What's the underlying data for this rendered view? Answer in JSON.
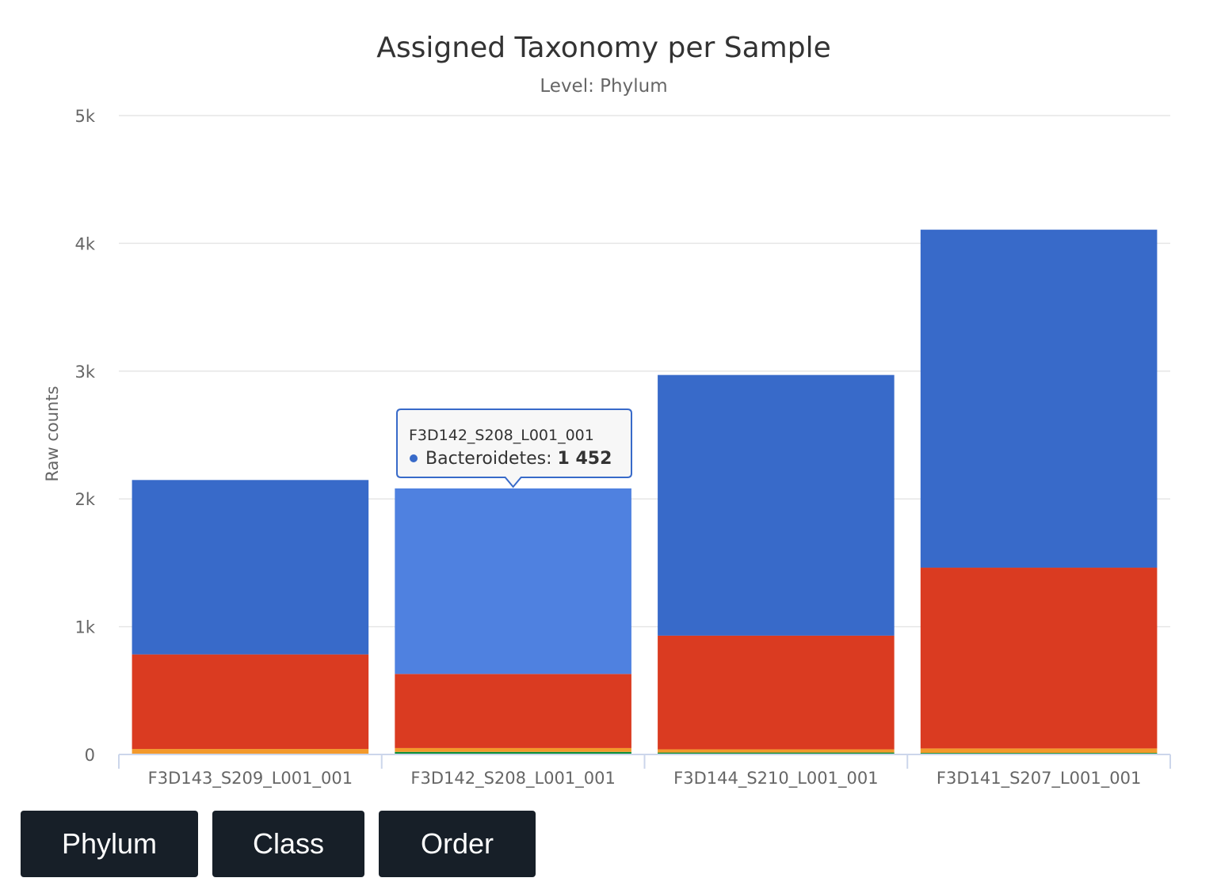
{
  "chart_data": {
    "type": "bar",
    "stacked": true,
    "title": "Assigned Taxonomy per Sample",
    "subtitle": "Level: Phylum",
    "ylabel": "Raw counts",
    "xlabel": "",
    "ylim": [
      0,
      5000
    ],
    "yticks": [
      {
        "value": 0,
        "label": "0"
      },
      {
        "value": 1000,
        "label": "1k"
      },
      {
        "value": 2000,
        "label": "2k"
      },
      {
        "value": 3000,
        "label": "3k"
      },
      {
        "value": 4000,
        "label": "4k"
      },
      {
        "value": 5000,
        "label": "5k"
      }
    ],
    "grid": true,
    "categories": [
      "F3D143_S209_L001_001",
      "F3D142_S208_L001_001",
      "F3D144_S210_L001_001",
      "F3D141_S207_L001_001"
    ],
    "series": [
      {
        "color": "#0b8f3a",
        "values": [
          5,
          20,
          15,
          12
        ]
      },
      {
        "color": "#f39a2b",
        "values": [
          38,
          30,
          25,
          35
        ]
      },
      {
        "color": "#da3b21",
        "values": [
          740,
          580,
          890,
          1415
        ]
      },
      {
        "name": "Bacteroidetes",
        "color": "#386ac9",
        "values": [
          1365,
          1452,
          2040,
          2645
        ]
      }
    ],
    "highlight": {
      "category_index": 1,
      "series_index": 3,
      "color": "#4f81e0"
    },
    "tooltip": {
      "header": "F3D142_S208_L001_001",
      "series_name": "Bacteroidetes",
      "value": "1 452"
    }
  },
  "buttons": {
    "phylum": "Phylum",
    "class": "Class",
    "order": "Order"
  }
}
